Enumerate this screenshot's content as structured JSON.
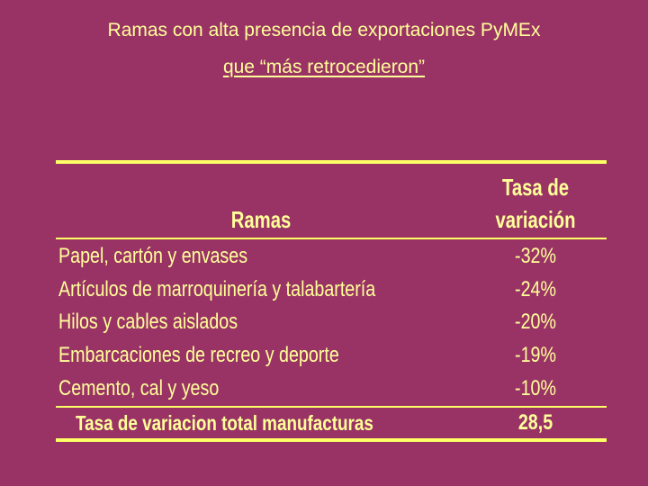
{
  "title": {
    "line1": "Ramas con alta presencia de exportaciones PyMEx",
    "line2": "que “más retrocedieron”"
  },
  "table": {
    "header_ramas": "Ramas",
    "header_tasa_line1": "Tasa de",
    "header_tasa_line2": "variación",
    "rows": [
      {
        "rama": "Papel, cartón  y envases",
        "tasa": "-32%"
      },
      {
        "rama": "Artículos de marroquinería y talabartería",
        "tasa": "-24%"
      },
      {
        "rama": "Hilos y cables aislados",
        "tasa": "-20%"
      },
      {
        "rama": "Embarcaciones de recreo y deporte",
        "tasa": "-19%"
      },
      {
        "rama": "Cemento, cal y yeso",
        "tasa": "-10%"
      }
    ],
    "total": {
      "rama": "Tasa de variacion total manufacturas",
      "tasa": "28,5"
    }
  },
  "colors": {
    "background": "#993366",
    "text": "#ffff99",
    "rules": "#ffff66"
  }
}
